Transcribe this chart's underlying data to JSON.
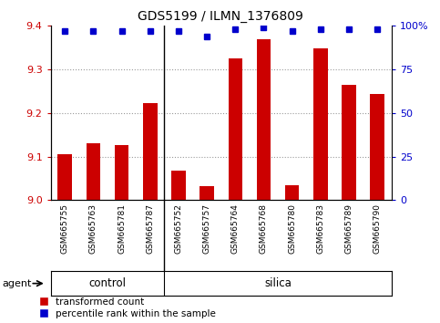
{
  "title": "GDS5199 / ILMN_1376809",
  "samples": [
    "GSM665755",
    "GSM665763",
    "GSM665781",
    "GSM665787",
    "GSM665752",
    "GSM665757",
    "GSM665764",
    "GSM665768",
    "GSM665780",
    "GSM665783",
    "GSM665789",
    "GSM665790"
  ],
  "red_values": [
    9.105,
    9.13,
    9.127,
    9.222,
    9.068,
    9.033,
    9.325,
    9.37,
    9.035,
    9.348,
    9.265,
    9.243
  ],
  "blue_values": [
    97,
    97,
    97,
    97,
    97,
    94,
    98,
    99,
    97,
    98,
    98,
    98
  ],
  "groups": [
    {
      "label": "control",
      "n": 4
    },
    {
      "label": "silica",
      "n": 8
    }
  ],
  "ylim_left": [
    9.0,
    9.4
  ],
  "ylim_right": [
    0,
    100
  ],
  "yticks_left": [
    9.0,
    9.1,
    9.2,
    9.3,
    9.4
  ],
  "yticks_right": [
    0,
    25,
    50,
    75,
    100
  ],
  "ytick_labels_right": [
    "0",
    "25",
    "50",
    "75",
    "100%"
  ],
  "left_color": "#cc0000",
  "right_color": "#0000cc",
  "bar_color": "#cc0000",
  "dot_color": "#0000cc",
  "agent_label": "agent",
  "green_color": "#90EE90",
  "gray_color": "#C8C8C8",
  "grid_color": "#999999",
  "n_control": 4,
  "n_silica": 8,
  "n_total": 12
}
